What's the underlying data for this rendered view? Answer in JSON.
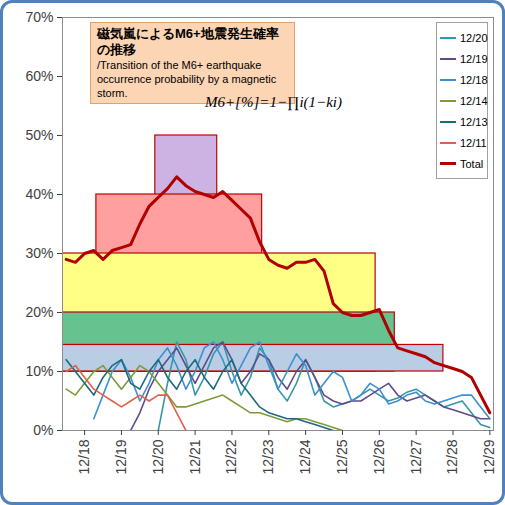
{
  "chart_data": {
    "type": "line",
    "title": "磁気嵐によるM6+地震発生確率の推移",
    "subtitle": "/Transition of the M6+ earthquake occurrence probability by a magnetic storm.",
    "annotations": [
      "M6+[%]=1−∏i(1−ki)"
    ],
    "x": [
      17.5,
      17.75,
      18,
      18.25,
      18.5,
      18.75,
      19,
      19.25,
      19.5,
      19.75,
      20,
      20.25,
      20.5,
      20.75,
      21,
      21.25,
      21.5,
      21.75,
      22,
      22.25,
      22.5,
      22.75,
      23,
      23.25,
      23.5,
      23.75,
      24,
      24.25,
      24.5,
      24.75,
      25,
      25.25,
      25.5,
      25.75,
      26,
      26.25,
      26.5,
      26.75,
      27,
      27.25,
      27.5,
      27.75,
      28,
      28.25,
      28.5,
      28.75,
      29
    ],
    "series": [
      {
        "name": "12/20",
        "color": "#3796a8",
        "values": [
          null,
          null,
          null,
          null,
          null,
          null,
          null,
          null,
          null,
          null,
          0,
          8,
          15,
          12,
          6,
          9,
          13,
          15,
          10,
          6,
          9,
          14,
          12,
          7,
          5,
          8,
          12,
          9,
          5,
          4,
          4.5,
          5,
          6,
          7,
          6,
          5,
          5.5,
          6.5,
          7,
          6,
          5,
          4,
          4.5,
          5,
          3,
          1,
          0.5
        ]
      },
      {
        "name": "12/19",
        "color": "#5f4b8b",
        "values": [
          null,
          null,
          null,
          null,
          null,
          null,
          null,
          0,
          3,
          7,
          10,
          12,
          14,
          11,
          8,
          11,
          14,
          15,
          12,
          8,
          10,
          13,
          12,
          9,
          7,
          10,
          12,
          9,
          6,
          5,
          4.5,
          5,
          5,
          6,
          7,
          8,
          6,
          5,
          5.5,
          6,
          5,
          4,
          3.5,
          3,
          2.5,
          2,
          2
        ]
      },
      {
        "name": "12/18",
        "color": "#3d8fd1",
        "values": [
          null,
          null,
          null,
          2,
          6,
          10,
          12,
          9,
          5,
          8,
          12,
          14,
          11,
          7,
          10,
          14,
          15,
          12,
          8,
          11,
          14,
          15,
          11,
          7,
          10,
          13,
          11,
          6,
          8,
          10,
          9,
          5,
          6,
          8,
          7,
          4.5,
          5,
          6,
          6.5,
          5,
          4.5,
          5,
          5.5,
          6,
          6,
          4,
          2
        ]
      },
      {
        "name": "12/14",
        "color": "#7f9a3c",
        "values": [
          7,
          6,
          8,
          10,
          11,
          9,
          7,
          9,
          11,
          10,
          8,
          6,
          4,
          4,
          4.5,
          5,
          5.5,
          6,
          5,
          4,
          3,
          3,
          2.5,
          2,
          1.5,
          2,
          2,
          1.5,
          1,
          0.5,
          0,
          null,
          null,
          null,
          null,
          null,
          null,
          null,
          null,
          null,
          null,
          null,
          null,
          null,
          null,
          null,
          null
        ]
      },
      {
        "name": "12/13",
        "color": "#1f6a7a",
        "values": [
          12,
          10,
          8,
          6,
          9,
          11,
          12,
          8,
          7,
          10,
          12,
          9,
          7,
          10,
          12,
          9,
          7,
          10,
          12,
          8,
          6,
          4,
          3,
          2.5,
          2,
          2,
          1.5,
          1,
          0.5,
          0,
          null,
          null,
          null,
          null,
          null,
          null,
          null,
          null,
          null,
          null,
          null,
          null,
          null,
          null,
          null,
          null,
          null
        ]
      },
      {
        "name": "12/11",
        "color": "#e0604a",
        "values": [
          10,
          11,
          9,
          7,
          6,
          5,
          4,
          5,
          6,
          5,
          6,
          6,
          3,
          0,
          null,
          null,
          null,
          null,
          null,
          null,
          null,
          null,
          null,
          null,
          null,
          null,
          null,
          null,
          null,
          null,
          null,
          null,
          null,
          null,
          null,
          null,
          null,
          null,
          null,
          null,
          null,
          null,
          null,
          null,
          null,
          null,
          null
        ]
      },
      {
        "name": "Total",
        "color": "#b00000",
        "values": [
          29,
          28.5,
          30,
          30.5,
          29,
          30.5,
          31,
          31.5,
          35,
          38,
          39.5,
          41,
          43,
          41.5,
          40.5,
          40,
          39.5,
          40.5,
          39,
          37.5,
          36,
          32,
          29,
          28,
          27.5,
          28.5,
          28.5,
          29,
          27,
          21.5,
          20,
          19.5,
          19.5,
          20,
          20.5,
          17,
          14,
          13.5,
          13,
          12.5,
          11.5,
          11,
          10.5,
          10,
          9,
          6,
          3
        ]
      }
    ],
    "regions": [
      {
        "x1": 19.92,
        "x2": 21.6,
        "y1": 10,
        "y2": 50,
        "color": "#ccb3e3"
      },
      {
        "x1": 18.32,
        "x2": 22.82,
        "y1": 10,
        "y2": 40,
        "color": "#ff9f9f"
      },
      {
        "x1": 17.4,
        "x2": 25.9,
        "y1": 10,
        "y2": 30,
        "color": "#ffff85"
      },
      {
        "x1": 17.4,
        "x2": 26.42,
        "y1": 10,
        "y2": 20,
        "color": "#66c28e"
      },
      {
        "x1": 17.4,
        "x2": 27.74,
        "y1": 10,
        "y2": 14.5,
        "color": "#b9cde5"
      }
    ],
    "xlim": [
      17.4,
      29.1
    ],
    "ylim": [
      0,
      70
    ],
    "xticks": [
      {
        "value": 18,
        "label": "12/18"
      },
      {
        "value": 19,
        "label": "12/19"
      },
      {
        "value": 20,
        "label": "12/20"
      },
      {
        "value": 21,
        "label": "12/21"
      },
      {
        "value": 22,
        "label": "12/22"
      },
      {
        "value": 23,
        "label": "12/23"
      },
      {
        "value": 24,
        "label": "12/24"
      },
      {
        "value": 25,
        "label": "12/25"
      },
      {
        "value": 26,
        "label": "12/26"
      },
      {
        "value": 27,
        "label": "12/27"
      },
      {
        "value": 28,
        "label": "12/28"
      },
      {
        "value": 29,
        "label": "12/29"
      }
    ],
    "yticks": [
      {
        "value": 0,
        "label": "0%"
      },
      {
        "value": 10,
        "label": "10%"
      },
      {
        "value": 20,
        "label": "20%"
      },
      {
        "value": 30,
        "label": "30%"
      },
      {
        "value": 40,
        "label": "40%"
      },
      {
        "value": 50,
        "label": "50%"
      },
      {
        "value": 60,
        "label": "60%"
      },
      {
        "value": 70,
        "label": "70%"
      }
    ],
    "grid": false,
    "legend": "top-right"
  }
}
